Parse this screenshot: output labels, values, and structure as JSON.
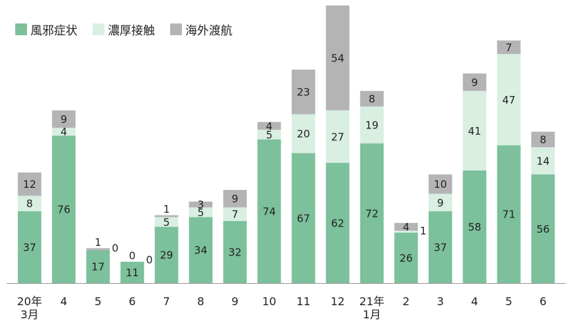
{
  "chart_data": {
    "type": "stacked-bar",
    "categories": [
      "20年\n3月",
      "4",
      "5",
      "6",
      "7",
      "8",
      "9",
      "10",
      "11",
      "12",
      "21年\n1月",
      "2",
      "3",
      "4",
      "5",
      "6"
    ],
    "series": [
      {
        "name": "風邪症状",
        "color": "#7cc09c",
        "values": [
          37,
          76,
          17,
          11,
          29,
          34,
          32,
          74,
          67,
          62,
          72,
          26,
          37,
          58,
          71,
          56
        ]
      },
      {
        "name": "濃厚接触",
        "color": "#d8efe1",
        "values": [
          8,
          4,
          0,
          0,
          5,
          5,
          7,
          5,
          20,
          27,
          19,
          1,
          9,
          41,
          47,
          14
        ]
      },
      {
        "name": "海外渡航",
        "color": "#b4b4b6",
        "values": [
          12,
          9,
          1,
          0,
          1,
          3,
          9,
          4,
          23,
          54,
          8,
          4,
          10,
          9,
          7,
          8
        ]
      }
    ]
  }
}
